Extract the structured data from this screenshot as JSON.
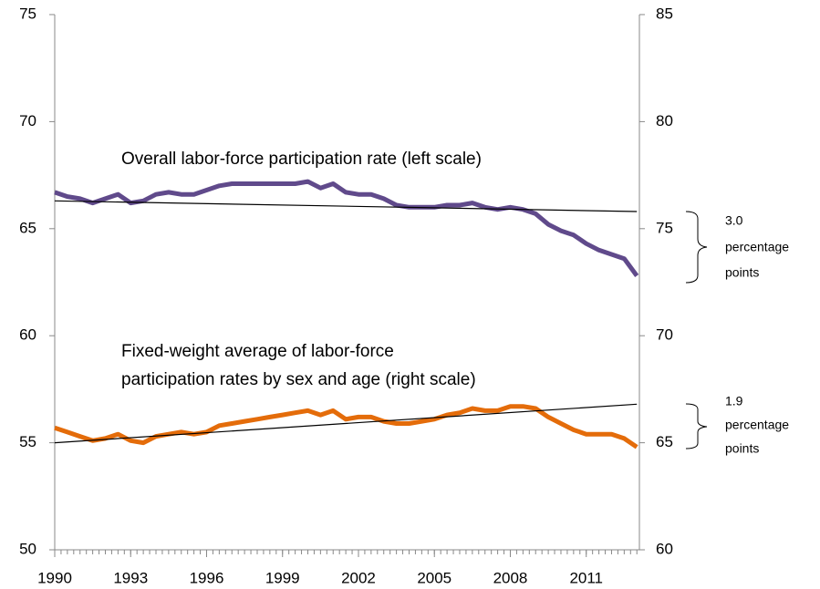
{
  "chart_data": {
    "type": "line",
    "x": [
      1990,
      1990.5,
      1991,
      1991.5,
      1992,
      1992.5,
      1993,
      1993.5,
      1994,
      1994.5,
      1995,
      1995.5,
      1996,
      1996.5,
      1997,
      1997.5,
      1998,
      1998.5,
      1999,
      1999.5,
      2000,
      2000.5,
      2001,
      2001.5,
      2002,
      2002.5,
      2003,
      2003.5,
      2004,
      2004.5,
      2005,
      2005.5,
      2006,
      2006.5,
      2007,
      2007.5,
      2008,
      2008.5,
      2009,
      2009.5,
      2010,
      2010.5,
      2011,
      2011.5,
      2012,
      2012.5,
      2013
    ],
    "series": [
      {
        "color": "#604a8b",
        "axis": "y",
        "values": [
          66.7,
          66.5,
          66.4,
          66.2,
          66.4,
          66.6,
          66.2,
          66.3,
          66.6,
          66.7,
          66.6,
          66.6,
          66.8,
          67.0,
          67.1,
          67.1,
          67.1,
          67.1,
          67.1,
          67.1,
          67.2,
          66.9,
          67.1,
          66.7,
          66.6,
          66.6,
          66.4,
          66.1,
          66.0,
          66.0,
          66.0,
          66.1,
          66.1,
          66.2,
          66.0,
          65.9,
          66.0,
          65.9,
          65.7,
          65.2,
          64.9,
          64.7,
          64.3,
          64.0,
          63.8,
          63.6,
          62.8
        ]
      },
      {
        "color": "#e46c0a",
        "axis": "y2",
        "values": [
          65.7,
          65.5,
          65.3,
          65.1,
          65.2,
          65.4,
          65.1,
          65.0,
          65.3,
          65.4,
          65.5,
          65.4,
          65.5,
          65.8,
          65.9,
          66.0,
          66.1,
          66.2,
          66.3,
          66.4,
          66.5,
          66.3,
          66.5,
          66.1,
          66.2,
          66.2,
          66.0,
          65.9,
          65.9,
          66.0,
          66.1,
          66.3,
          66.4,
          66.6,
          66.5,
          66.5,
          66.7,
          66.7,
          66.6,
          66.2,
          65.9,
          65.6,
          65.4,
          65.4,
          65.4,
          65.2,
          64.8
        ]
      }
    ],
    "trend_lines": [
      {
        "color": "#000000",
        "axis": "y",
        "x": [
          1990,
          2013
        ],
        "values": [
          66.3,
          65.8
        ]
      },
      {
        "color": "#000000",
        "axis": "y2",
        "x": [
          1990,
          2013
        ],
        "values": [
          65.0,
          66.8
        ]
      }
    ],
    "xlim": [
      1990,
      2013.1
    ],
    "xticks": [
      1990,
      1993,
      1996,
      1999,
      2002,
      2005,
      2008,
      2011
    ],
    "ylim": [
      50,
      75
    ],
    "yticks": [
      50,
      55,
      60,
      65,
      70,
      75
    ],
    "y2lim": [
      60,
      85
    ],
    "y2ticks": [
      60,
      65,
      70,
      75,
      80,
      85
    ],
    "grid": false,
    "annotations": [
      {
        "lines": [
          "Overall labor-force participation rate (left scale)"
        ]
      },
      {
        "lines": [
          "Fixed-weight average of  labor-force",
          "participation rates by sex and age (right scale)"
        ]
      },
      {
        "lines": [
          "3.0",
          "percentage",
          "points"
        ]
      },
      {
        "lines": [
          "1.9",
          "percentage",
          "points"
        ]
      }
    ]
  }
}
